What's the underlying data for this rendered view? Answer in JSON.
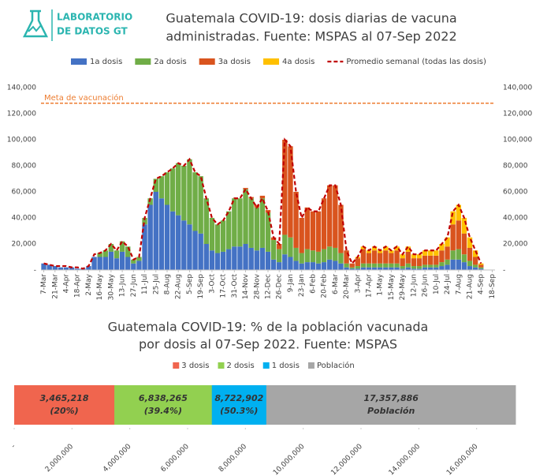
{
  "logo": {
    "lines": [
      "LABORATORIO",
      "DE DATOS GT"
    ]
  },
  "chart_data": [
    {
      "type": "stacked_bar",
      "title": [
        "Guatemala COVID-19: dosis diarias de vacuna",
        "administradas. Fuente: MSPAS al 07-Sep 2022"
      ],
      "categories": [
        "7-Mar",
        null,
        "21-Mar",
        null,
        "4-Apr",
        null,
        "18-Apr",
        null,
        "2-May",
        null,
        "16-May",
        null,
        "30-May",
        null,
        "13-Jun",
        null,
        "27-Jun",
        null,
        "11-Jul",
        null,
        "25-Jul",
        null,
        "8-Aug",
        null,
        "22-Aug",
        null,
        "5-Sep",
        null,
        "19-Sep",
        null,
        "3-Oct",
        null,
        "17-Oct",
        null,
        "31-Oct",
        null,
        "14-Nov",
        null,
        "28-Nov",
        null,
        "12-Dec",
        null,
        "26-Dec",
        null,
        "9-Jan",
        null,
        "23-Jan",
        null,
        "6-Feb",
        null,
        "20-Feb",
        null,
        "6-Mar",
        null,
        "20-Mar",
        null,
        "3-Apr",
        null,
        "17-Apr",
        null,
        "1-May",
        null,
        "15-May",
        null,
        "29-May",
        null,
        "12-Jun",
        null,
        "26-Jun",
        null,
        "10-Jul",
        null,
        "24-Jul",
        null,
        "7-Aug",
        null,
        "21-Aug",
        null,
        "4-Sep",
        null,
        "18-Sep"
      ],
      "series": [
        {
          "name": "1a dosis",
          "color": "#4472c4",
          "values": [
            5000,
            4000,
            3000,
            2000,
            2000,
            2000,
            1000,
            1000,
            3000,
            10000,
            10000,
            10000,
            14000,
            9000,
            14000,
            10000,
            5000,
            7000,
            35000,
            50000,
            60000,
            55000,
            50000,
            45000,
            42000,
            38000,
            35000,
            30000,
            28000,
            20000,
            15000,
            13000,
            14000,
            16000,
            18000,
            18000,
            20000,
            17000,
            15000,
            17000,
            14000,
            8000,
            6000,
            12000,
            10000,
            7000,
            5000,
            6000,
            6000,
            5000,
            6000,
            8000,
            7000,
            5000,
            2000,
            1000,
            1000,
            2000,
            2000,
            2000,
            2000,
            2000,
            2000,
            2000,
            1000,
            2000,
            1000,
            1000,
            2000,
            2000,
            2000,
            3000,
            4000,
            8000,
            8000,
            6000,
            3000,
            2000,
            1000,
            null,
            null
          ]
        },
        {
          "name": "2a dosis",
          "color": "#70ad47",
          "values": [
            0,
            0,
            0,
            0,
            0,
            0,
            0,
            0,
            0,
            0,
            3000,
            5000,
            6000,
            6000,
            8000,
            8000,
            3000,
            3000,
            5000,
            5000,
            10000,
            17000,
            25000,
            33000,
            40000,
            42000,
            50000,
            45000,
            44000,
            35000,
            25000,
            22000,
            24000,
            29000,
            37000,
            37000,
            42000,
            38000,
            33000,
            38000,
            30000,
            15000,
            10000,
            15000,
            15000,
            10000,
            8000,
            10000,
            9000,
            9000,
            10000,
            10000,
            10000,
            8000,
            3000,
            1000,
            2000,
            3000,
            3000,
            3000,
            3000,
            3000,
            3000,
            3000,
            2000,
            3000,
            2000,
            2000,
            2000,
            2000,
            2000,
            3000,
            4000,
            7000,
            8000,
            6000,
            4000,
            2000,
            1000,
            null,
            null
          ]
        },
        {
          "name": "3a dosis",
          "color": "#d9541e",
          "values": [
            0,
            0,
            0,
            0,
            0,
            0,
            0,
            0,
            0,
            0,
            0,
            0,
            0,
            0,
            0,
            0,
            0,
            0,
            0,
            0,
            0,
            0,
            0,
            0,
            0,
            0,
            0,
            0,
            0,
            0,
            0,
            0,
            0,
            0,
            0,
            0,
            1000,
            1000,
            2000,
            2000,
            2000,
            2000,
            4000,
            73000,
            70000,
            43000,
            27000,
            32000,
            30000,
            31000,
            39000,
            47000,
            48000,
            37000,
            10000,
            3000,
            6000,
            11000,
            8000,
            10000,
            8000,
            10000,
            8000,
            10000,
            6000,
            9000,
            6000,
            6000,
            7000,
            7000,
            7000,
            9000,
            10000,
            20000,
            22000,
            16000,
            10000,
            6000,
            2000,
            null,
            null
          ]
        },
        {
          "name": "4a dosis",
          "color": "#ffc000",
          "values": [
            0,
            0,
            0,
            0,
            0,
            0,
            0,
            0,
            0,
            0,
            0,
            0,
            0,
            0,
            0,
            0,
            0,
            0,
            0,
            0,
            0,
            0,
            0,
            0,
            0,
            0,
            0,
            0,
            0,
            0,
            0,
            0,
            0,
            0,
            0,
            0,
            0,
            0,
            0,
            0,
            0,
            0,
            0,
            0,
            0,
            0,
            0,
            0,
            0,
            0,
            0,
            0,
            0,
            0,
            0,
            0,
            1000,
            2000,
            2000,
            3000,
            2000,
            3000,
            2000,
            3000,
            3000,
            4000,
            3000,
            3000,
            4000,
            4000,
            4000,
            5000,
            7000,
            10000,
            12000,
            12000,
            8000,
            5000,
            1000,
            null,
            null
          ]
        }
      ],
      "average": {
        "name": "Promedio semanal (todas las dosis)",
        "color": "#c00000",
        "values": [
          5000,
          4000,
          3000,
          3000,
          3000,
          2000,
          2000,
          1000,
          3000,
          12000,
          13000,
          15000,
          20000,
          15000,
          22000,
          18000,
          8000,
          10000,
          40000,
          55000,
          70000,
          72000,
          75000,
          78000,
          82000,
          80000,
          85000,
          75000,
          72000,
          55000,
          40000,
          35000,
          38000,
          45000,
          55000,
          55000,
          62000,
          55000,
          48000,
          55000,
          45000,
          25000,
          20000,
          100000,
          95000,
          60000,
          40000,
          48000,
          45000,
          45000,
          55000,
          65000,
          65000,
          50000,
          15000,
          5000,
          10000,
          18000,
          15000,
          18000,
          15000,
          18000,
          15000,
          18000,
          12000,
          18000,
          12000,
          12000,
          15000,
          15000,
          15000,
          20000,
          25000,
          45000,
          50000,
          40000,
          25000,
          15000,
          5000,
          null,
          null
        ]
      },
      "target": {
        "value": 128000,
        "label": "Meta de vacunación",
        "color": "#ed7d31"
      },
      "ylim": [
        0,
        140000
      ],
      "yticks": [
        {
          "value": 0,
          "label": "-"
        },
        {
          "value": 20000,
          "label": "20,000"
        },
        {
          "value": 40000,
          "label": "40,000"
        },
        {
          "value": 60000,
          "label": "60,000"
        },
        {
          "value": 80000,
          "label": "80,000"
        },
        {
          "value": 100000,
          "label": "100,000"
        },
        {
          "value": 120000,
          "label": "120,000"
        },
        {
          "value": 140000,
          "label": "140,000"
        }
      ],
      "y2lim": [
        0,
        140000
      ],
      "y2ticks": [
        {
          "value": 0,
          "label": "-"
        },
        {
          "value": 20000,
          "label": "20,000"
        },
        {
          "value": 40000,
          "label": "40,000"
        },
        {
          "value": 60000,
          "label": "60,000"
        },
        {
          "value": 80000,
          "label": "80,000"
        },
        {
          "value": 100000,
          "label": "100,000"
        },
        {
          "value": 120000,
          "label": "120,000"
        },
        {
          "value": 140000,
          "label": "140,000"
        }
      ],
      "grid": false,
      "legend": "top"
    },
    {
      "type": "overlap_hbar",
      "title": [
        "Guatemala COVID-19: % de la población vacunada",
        "por dosis al 07-Sep 2022. Fuente: MSPAS"
      ],
      "categories": [
        "3 dosis",
        "2 dosis",
        "1 dosis",
        "Población"
      ],
      "values": [
        3465218,
        6838265,
        8722902,
        17357886
      ],
      "value_labels": [
        "3,465,218",
        "6,838,265",
        "8,722,902",
        "17,357,886"
      ],
      "percent_labels": [
        "(20%)",
        "(39.4%)",
        "(50.3%)"
      ],
      "colors": [
        "#f0654e",
        "#92d050",
        "#00b0f0",
        "#a6a6a6"
      ],
      "xlim": [
        0,
        18000000
      ],
      "xticks": [
        {
          "value": 0,
          "label": "-"
        },
        {
          "value": 2000000,
          "label": "2,000,000"
        },
        {
          "value": 4000000,
          "label": "4,000,000"
        },
        {
          "value": 6000000,
          "label": "6,000,000"
        },
        {
          "value": 8000000,
          "label": "8,000,000"
        },
        {
          "value": 10000000,
          "label": "10,000,000"
        },
        {
          "value": 12000000,
          "label": "12,000,000"
        },
        {
          "value": 14000000,
          "label": "14,000,000"
        },
        {
          "value": 16000000,
          "label": "16,000,000"
        }
      ],
      "legend": "top"
    }
  ]
}
